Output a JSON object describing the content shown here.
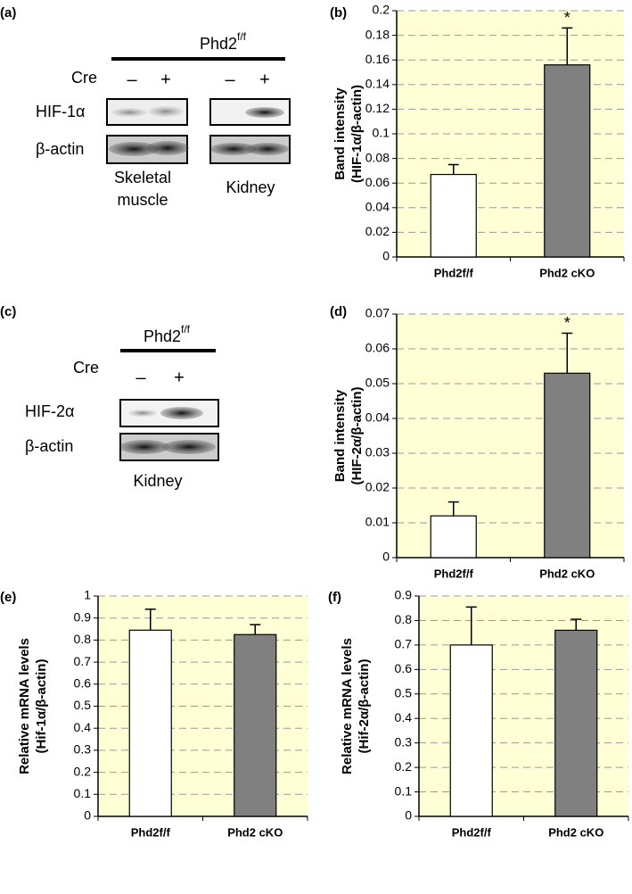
{
  "blots": [
    {
      "panel": "(a)",
      "header": "Phd2",
      "header_sup": "f/f",
      "treatment": "Cre",
      "conditions": [
        "–",
        "+",
        "–",
        "+"
      ],
      "rows": [
        "HIF-1α",
        "β-actin"
      ],
      "tissues": [
        [
          "Skeletal",
          "muscle"
        ],
        [
          "Kidney"
        ]
      ]
    },
    {
      "panel": "(c)",
      "header": "Phd2",
      "header_sup": "f/f",
      "treatment": "Cre",
      "conditions": [
        "–",
        "+"
      ],
      "rows": [
        "HIF-2α",
        "β-actin"
      ],
      "tissues": [
        [
          "Kidney"
        ]
      ]
    }
  ],
  "chart_data": [
    {
      "type": "bar",
      "panel": "(b)",
      "ylabel": [
        "Band intensity",
        "(HIF-1α/β-actin)"
      ],
      "categories": [
        "Phd2f/f",
        "Phd2 cKO"
      ],
      "values": [
        0.067,
        0.156
      ],
      "errors": [
        0.008,
        0.03
      ],
      "colors": [
        "#ffffff",
        "#808080"
      ],
      "ylim": [
        0,
        0.2
      ],
      "yticks": [
        0,
        0.02,
        0.04,
        0.06,
        0.08,
        0.1,
        0.12,
        0.14,
        0.16,
        0.18,
        0.2
      ],
      "grid": true,
      "annotations": [
        {
          "text": "*",
          "x": "Phd2 cKO"
        }
      ]
    },
    {
      "type": "bar",
      "panel": "(d)",
      "ylabel": [
        "Band intensity",
        "(HIF-2α/β-actin)"
      ],
      "categories": [
        "Phd2f/f",
        "Phd2 cKO"
      ],
      "values": [
        0.012,
        0.053
      ],
      "errors": [
        0.004,
        0.0115
      ],
      "colors": [
        "#ffffff",
        "#808080"
      ],
      "ylim": [
        0,
        0.07
      ],
      "yticks": [
        0,
        0.01,
        0.02,
        0.03,
        0.04,
        0.05,
        0.06,
        0.07
      ],
      "grid": true,
      "annotations": [
        {
          "text": "*",
          "x": "Phd2 cKO"
        }
      ]
    },
    {
      "type": "bar",
      "panel": "(e)",
      "ylabel": [
        "Relative mRNA levels",
        "(Hif-1α/β-actin)"
      ],
      "categories": [
        "Phd2f/f",
        "Phd2 cKO"
      ],
      "values": [
        0.845,
        0.825
      ],
      "errors": [
        0.095,
        0.045
      ],
      "colors": [
        "#ffffff",
        "#808080"
      ],
      "ylim": [
        0,
        1
      ],
      "yticks": [
        0,
        0.1,
        0.2,
        0.3,
        0.4,
        0.5,
        0.6,
        0.7,
        0.8,
        0.9,
        1
      ],
      "grid": true
    },
    {
      "type": "bar",
      "panel": "(f)",
      "ylabel": [
        "Relative mRNA levels",
        "(Hif-2α/β-actin)"
      ],
      "categories": [
        "Phd2f/f",
        "Phd2 cKO"
      ],
      "values": [
        0.7,
        0.76
      ],
      "errors": [
        0.155,
        0.045
      ],
      "colors": [
        "#ffffff",
        "#808080"
      ],
      "ylim": [
        0,
        0.9
      ],
      "yticks": [
        0,
        0.1,
        0.2,
        0.3,
        0.4,
        0.5,
        0.6,
        0.7,
        0.8,
        0.9
      ],
      "grid": true
    }
  ]
}
